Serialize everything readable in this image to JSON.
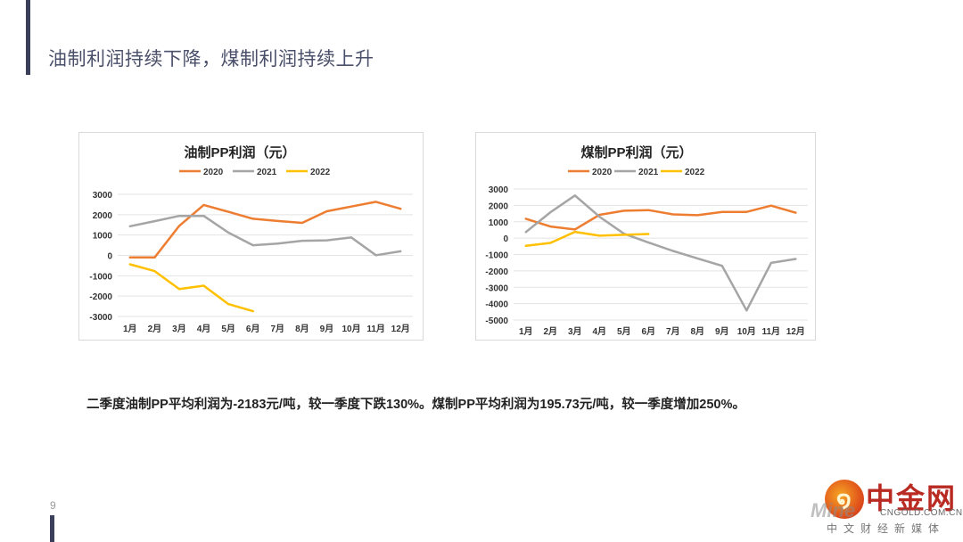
{
  "slide": {
    "title": "油制利润持续下降，煤制利润持续上升",
    "summary": "二季度油制PP平均利润为-2183元/吨，较一季度下跌130%。煤制PP平均利润为195.73元/吨，较一季度增加250%。",
    "page_number": "9"
  },
  "logo": {
    "brand": "中金网",
    "domain": "CNGOLD.COM.CN",
    "tagline": "中文财经新媒体",
    "watermark": "Mine"
  },
  "colors": {
    "2020": "#ED7D31",
    "2021": "#A5A5A5",
    "2022": "#FFC000"
  },
  "chart_data": [
    {
      "type": "line",
      "title": "油制PP利润（元）",
      "xlabel": "",
      "ylabel": "",
      "categories": [
        "1月",
        "2月",
        "3月",
        "4月",
        "5月",
        "6月",
        "7月",
        "8月",
        "9月",
        "10月",
        "11月",
        "12月"
      ],
      "ylim": [
        -3000,
        3000
      ],
      "yticks": [
        3000,
        2000,
        1000,
        0,
        -1000,
        -2000,
        -3000
      ],
      "ytick_labels": [
        "3000",
        "2000",
        "1000",
        "0",
        "-1000",
        "-2000",
        "-3000"
      ],
      "grid": true,
      "legend": "top",
      "series": [
        {
          "name": "2020",
          "color": "#ED7D31",
          "values": [
            -100,
            -100,
            1450,
            2480,
            2140,
            1800,
            1690,
            1600,
            2170,
            2400,
            2630,
            2290
          ]
        },
        {
          "name": "2021",
          "color": "#A5A5A5",
          "values": [
            1430,
            1680,
            1940,
            1940,
            1120,
            500,
            580,
            720,
            740,
            880,
            10,
            200
          ]
        },
        {
          "name": "2022",
          "color": "#FFC000",
          "values": [
            -440,
            -770,
            -1650,
            -1490,
            -2390,
            -2740
          ]
        }
      ]
    },
    {
      "type": "line",
      "title": "煤制PP利润（元）",
      "xlabel": "",
      "ylabel": "",
      "categories": [
        "1月",
        "2月",
        "3月",
        "4月",
        "5月",
        "6月",
        "7月",
        "8月",
        "9月",
        "10月",
        "11月",
        "12月"
      ],
      "ylim": [
        -5000,
        3000
      ],
      "yticks": [
        3000,
        2000,
        1000,
        0,
        -1000,
        -2000,
        -3000,
        -4000,
        -5000
      ],
      "ytick_labels": [
        "3000",
        "2000",
        "1000",
        "0",
        "-1000",
        "-2000",
        "-3000",
        "-4000",
        "-5000"
      ],
      "grid": true,
      "legend": "top",
      "series": [
        {
          "name": "2020",
          "color": "#ED7D31",
          "values": [
            1180,
            710,
            530,
            1420,
            1670,
            1710,
            1450,
            1400,
            1600,
            1600,
            1980,
            1550
          ]
        },
        {
          "name": "2021",
          "color": "#A5A5A5",
          "values": [
            370,
            1580,
            2600,
            1310,
            270,
            -270,
            -780,
            -1240,
            -1690,
            -4420,
            -1510,
            -1270
          ]
        },
        {
          "name": "2022",
          "color": "#FFC000",
          "values": [
            -470,
            -290,
            380,
            150,
            200,
            250
          ]
        }
      ]
    }
  ]
}
